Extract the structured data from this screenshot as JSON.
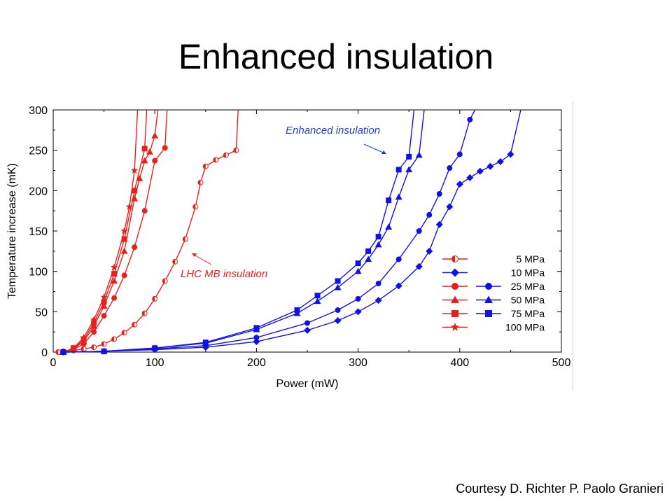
{
  "slide": {
    "title": "Enhanced insulation",
    "credit": "Courtesy D. Richter P. Paolo Granieri"
  },
  "colors": {
    "red": "#e8201c",
    "blue": "#1010e8",
    "annotation_blue": "#1f3fd8"
  },
  "chart_data": {
    "type": "line",
    "title": "",
    "xlabel": "Power (mW)",
    "ylabel": "Temperature increase (mK)",
    "xlim": [
      0,
      500
    ],
    "ylim": [
      0,
      300
    ],
    "xticks": [
      0,
      100,
      200,
      300,
      400,
      500
    ],
    "yticks": [
      0,
      50,
      100,
      150,
      200,
      250,
      300
    ],
    "grid": false,
    "legend_placement": "right-center",
    "legend": [
      {
        "label": "5 MPa",
        "symbols": [
          "half-circle"
        ]
      },
      {
        "label": "10 MPa",
        "symbols": [
          "diamond"
        ]
      },
      {
        "label": "25 MPa",
        "symbols": [
          "circle",
          "circle"
        ]
      },
      {
        "label": "50 MPa",
        "symbols": [
          "triangle",
          "triangle"
        ]
      },
      {
        "label": "75 MPa",
        "symbols": [
          "square",
          "square"
        ]
      },
      {
        "label": "100 MPa",
        "symbols": [
          "star"
        ]
      }
    ],
    "annotations": [
      {
        "text": "Enhanced insulation",
        "color": "blue"
      },
      {
        "text": "LHC MB insulation",
        "color": "red"
      }
    ],
    "series": [
      {
        "group": "LHC MB insulation",
        "pressure": "5 MPa",
        "color": "red",
        "marker": "half-circle",
        "points": [
          [
            5,
            0
          ],
          [
            10,
            1
          ],
          [
            20,
            2
          ],
          [
            30,
            4
          ],
          [
            40,
            6
          ],
          [
            50,
            10
          ],
          [
            60,
            16
          ],
          [
            70,
            24
          ],
          [
            80,
            34
          ],
          [
            90,
            48
          ],
          [
            100,
            66
          ],
          [
            110,
            88
          ],
          [
            120,
            112
          ],
          [
            130,
            140
          ],
          [
            140,
            180
          ],
          [
            145,
            210
          ],
          [
            150,
            230
          ],
          [
            160,
            238
          ],
          [
            170,
            244
          ],
          [
            180,
            250
          ],
          [
            182,
            300
          ]
        ]
      },
      {
        "group": "LHC MB insulation",
        "pressure": "25 MPa",
        "color": "red",
        "marker": "circle",
        "points": [
          [
            10,
            0
          ],
          [
            20,
            3
          ],
          [
            30,
            10
          ],
          [
            40,
            25
          ],
          [
            50,
            45
          ],
          [
            60,
            67
          ],
          [
            70,
            95
          ],
          [
            80,
            130
          ],
          [
            90,
            175
          ],
          [
            100,
            237
          ],
          [
            110,
            253
          ],
          [
            112,
            300
          ]
        ]
      },
      {
        "group": "LHC MB insulation",
        "pressure": "50 MPa",
        "color": "red",
        "marker": "triangle",
        "points": [
          [
            10,
            0
          ],
          [
            20,
            4
          ],
          [
            30,
            13
          ],
          [
            40,
            32
          ],
          [
            50,
            57
          ],
          [
            60,
            88
          ],
          [
            70,
            125
          ],
          [
            80,
            190
          ],
          [
            85,
            215
          ],
          [
            90,
            237
          ],
          [
            95,
            248
          ],
          [
            100,
            268
          ],
          [
            103,
            300
          ]
        ]
      },
      {
        "group": "LHC MB insulation",
        "pressure": "75 MPa",
        "color": "red",
        "marker": "square",
        "points": [
          [
            10,
            0
          ],
          [
            20,
            5
          ],
          [
            30,
            15
          ],
          [
            40,
            36
          ],
          [
            50,
            62
          ],
          [
            60,
            97
          ],
          [
            70,
            140
          ],
          [
            80,
            200
          ],
          [
            90,
            252
          ],
          [
            92,
            300
          ]
        ]
      },
      {
        "group": "LHC MB insulation",
        "pressure": "100 MPa",
        "color": "red",
        "marker": "star",
        "points": [
          [
            10,
            0
          ],
          [
            20,
            5
          ],
          [
            30,
            18
          ],
          [
            40,
            40
          ],
          [
            50,
            68
          ],
          [
            60,
            105
          ],
          [
            70,
            150
          ],
          [
            75,
            180
          ],
          [
            80,
            225
          ],
          [
            83,
            300
          ]
        ]
      },
      {
        "group": "Enhanced insulation",
        "pressure": "10 MPa",
        "color": "blue",
        "marker": "diamond",
        "points": [
          [
            10,
            0
          ],
          [
            50,
            1
          ],
          [
            100,
            3
          ],
          [
            150,
            6
          ],
          [
            200,
            13
          ],
          [
            250,
            27
          ],
          [
            280,
            39
          ],
          [
            300,
            50
          ],
          [
            320,
            64
          ],
          [
            340,
            82
          ],
          [
            360,
            106
          ],
          [
            370,
            125
          ],
          [
            380,
            158
          ],
          [
            390,
            180
          ],
          [
            400,
            208
          ],
          [
            410,
            216
          ],
          [
            420,
            224
          ],
          [
            430,
            230
          ],
          [
            440,
            236
          ],
          [
            450,
            245
          ],
          [
            460,
            300
          ]
        ]
      },
      {
        "group": "Enhanced insulation",
        "pressure": "25 MPa",
        "color": "blue",
        "marker": "circle",
        "points": [
          [
            10,
            0
          ],
          [
            50,
            1
          ],
          [
            100,
            4
          ],
          [
            150,
            8
          ],
          [
            200,
            18
          ],
          [
            250,
            36
          ],
          [
            280,
            52
          ],
          [
            300,
            66
          ],
          [
            320,
            85
          ],
          [
            340,
            115
          ],
          [
            360,
            150
          ],
          [
            370,
            170
          ],
          [
            380,
            196
          ],
          [
            390,
            228
          ],
          [
            400,
            245
          ],
          [
            410,
            288
          ],
          [
            415,
            300
          ]
        ]
      },
      {
        "group": "Enhanced insulation",
        "pressure": "50 MPa",
        "color": "blue",
        "marker": "triangle",
        "points": [
          [
            10,
            0
          ],
          [
            50,
            1
          ],
          [
            100,
            5
          ],
          [
            150,
            11
          ],
          [
            200,
            28
          ],
          [
            240,
            48
          ],
          [
            260,
            63
          ],
          [
            280,
            80
          ],
          [
            300,
            100
          ],
          [
            310,
            115
          ],
          [
            320,
            133
          ],
          [
            330,
            155
          ],
          [
            340,
            192
          ],
          [
            350,
            226
          ],
          [
            360,
            244
          ],
          [
            365,
            300
          ]
        ]
      },
      {
        "group": "Enhanced insulation",
        "pressure": "75 MPa",
        "color": "blue",
        "marker": "square",
        "points": [
          [
            10,
            0
          ],
          [
            50,
            1
          ],
          [
            100,
            5
          ],
          [
            150,
            12
          ],
          [
            200,
            30
          ],
          [
            240,
            52
          ],
          [
            260,
            70
          ],
          [
            280,
            88
          ],
          [
            300,
            110
          ],
          [
            310,
            125
          ],
          [
            320,
            143
          ],
          [
            330,
            188
          ],
          [
            340,
            226
          ],
          [
            350,
            242
          ],
          [
            355,
            300
          ]
        ]
      }
    ]
  }
}
